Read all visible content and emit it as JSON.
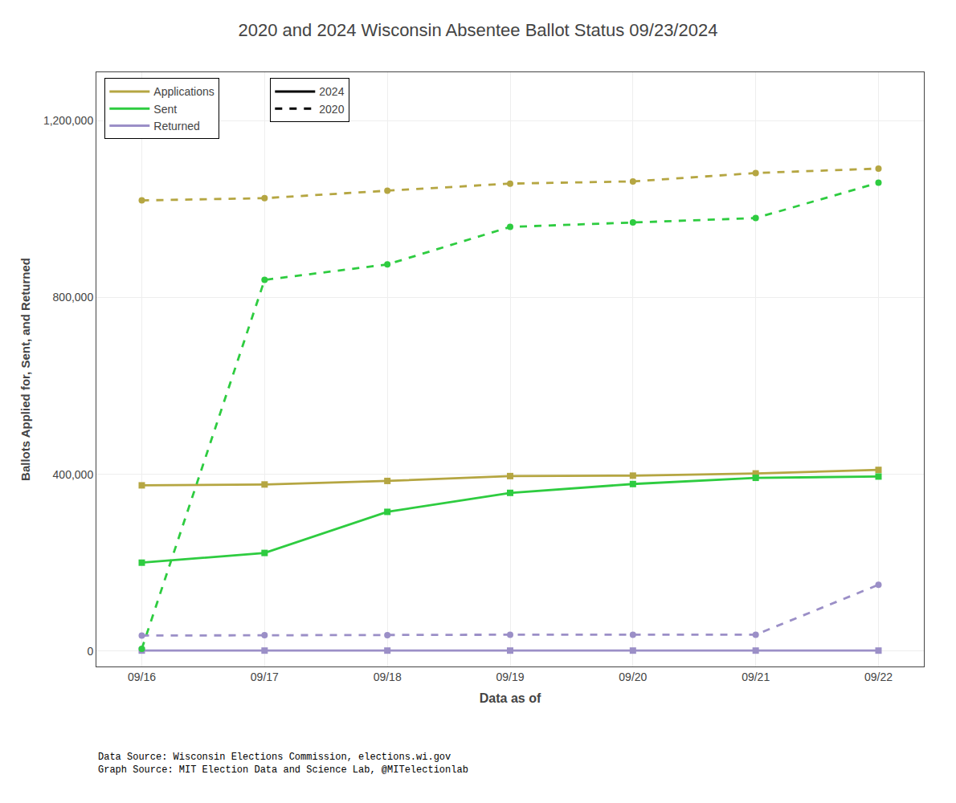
{
  "chart_data": {
    "type": "line",
    "title": "2020 and 2024 Wisconsin Absentee Ballot Status 09/23/2024",
    "xlabel": "Data as of",
    "ylabel": "Ballots Applied for, Sent, and Returned",
    "categories": [
      "09/16",
      "09/17",
      "09/18",
      "09/19",
      "09/20",
      "09/21",
      "09/22"
    ],
    "series": [
      {
        "color": "#b5a642",
        "line_style": "solid",
        "marker": "square",
        "values": [
          375000,
          377000,
          385000,
          396000,
          397000,
          402000,
          410000
        ]
      },
      {
        "color": "#2ecc40",
        "line_style": "solid",
        "marker": "square",
        "values": [
          200000,
          222000,
          315000,
          358000,
          378000,
          392000,
          395000
        ]
      },
      {
        "color": "#9b8fc7",
        "line_style": "solid",
        "marker": "square",
        "values": [
          1000,
          1000,
          1000,
          1000,
          1000,
          1000,
          1000
        ]
      },
      {
        "color": "#b5a642",
        "line_style": "dashed",
        "marker": "circle",
        "values": [
          1020000,
          1025000,
          1042000,
          1058000,
          1063000,
          1082000,
          1092000
        ]
      },
      {
        "color": "#2ecc40",
        "line_style": "dashed",
        "marker": "circle",
        "values": [
          5000,
          840000,
          875000,
          960000,
          970000,
          980000,
          1060000
        ]
      },
      {
        "color": "#9b8fc7",
        "line_style": "dashed",
        "marker": "circle",
        "values": [
          35000,
          36000,
          36000,
          37000,
          37000,
          37000,
          150000
        ]
      }
    ],
    "legend_entries": [
      [
        {
          "name": "Applications",
          "color": "#b5a642",
          "line_style": "solid"
        },
        {
          "name": "Sent",
          "color": "#2ecc40",
          "line_style": "solid"
        },
        {
          "name": "Returned",
          "color": "#9b8fc7",
          "line_style": "solid"
        }
      ],
      [
        {
          "name": "2024",
          "color": "black",
          "line_style": "solid"
        },
        {
          "name": "2020",
          "color": "black",
          "line_style": "dashed"
        }
      ]
    ],
    "ylim": [
      -35000,
      1310000
    ],
    "yticks": [
      0,
      {
        "value": 400000,
        "label": "400,000"
      },
      {
        "value": 800000,
        "label": "800,000"
      },
      {
        "value": 1200000,
        "label": "1,200,000"
      }
    ],
    "grid": true,
    "legend": "upper left",
    "annotations": [
      "Data Source: Wisconsin Elections Commission, elections.wi.gov\nGraph Source: MIT Election Data and Science Lab, @MITelectionlab"
    ]
  }
}
